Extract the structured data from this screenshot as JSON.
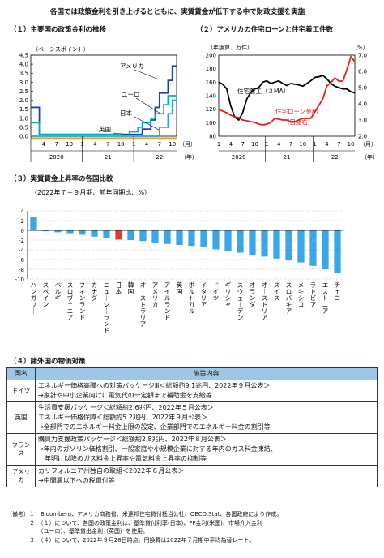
{
  "page_title": "各国では政策金利を引き上げるとともに、実質賃金が低下する中で財政支援を実施",
  "panel1": {
    "title": "（１）主要国の政策金利の推移",
    "chart_data": {
      "type": "line",
      "title": "主要国の政策金利の推移",
      "ylabel": "（ベーシスポイント）",
      "ylim": [
        0,
        4.5
      ],
      "yticks": [
        "4.5",
        "4.0",
        "3.5",
        "3.0",
        "2.5",
        "2.0",
        "1.5",
        "1.0",
        "0.5",
        "0.0"
      ],
      "x_month_ticks": [
        "4",
        "7",
        "10",
        "1",
        "4",
        "7",
        "10",
        "1",
        "4",
        "7",
        "10"
      ],
      "x_month_unit": "（月）",
      "x_years": [
        "2020",
        "21",
        "22"
      ],
      "x_year_unit": "（年）",
      "months": [
        "2020-01",
        "2020-02",
        "2020-03",
        "2020-04",
        "2020-05",
        "2020-06",
        "2020-07",
        "2020-08",
        "2020-09",
        "2020-10",
        "2020-11",
        "2020-12",
        "2021-01",
        "2021-02",
        "2021-03",
        "2021-04",
        "2021-05",
        "2021-06",
        "2021-07",
        "2021-08",
        "2021-09",
        "2021-10",
        "2021-11",
        "2021-12",
        "2022-01",
        "2022-02",
        "2022-03",
        "2022-04",
        "2022-05",
        "2022-06",
        "2022-07",
        "2022-08",
        "2022-09",
        "2022-10"
      ],
      "series": [
        {
          "name": "アメリカ",
          "color": "#1f3fbf",
          "values": [
            1.6,
            1.6,
            0.1,
            0.1,
            0.1,
            0.1,
            0.1,
            0.1,
            0.1,
            0.1,
            0.1,
            0.1,
            0.1,
            0.1,
            0.1,
            0.1,
            0.1,
            0.1,
            0.1,
            0.1,
            0.1,
            0.1,
            0.1,
            0.1,
            0.1,
            0.1,
            0.4,
            0.4,
            0.9,
            1.6,
            2.4,
            2.4,
            3.1,
            3.9
          ]
        },
        {
          "name": "ユーロ",
          "color": "#28a0e6",
          "values": [
            0,
            0,
            0,
            0,
            0,
            0,
            0,
            0,
            0,
            0,
            0,
            0,
            0,
            0,
            0,
            0,
            0,
            0,
            0,
            0,
            0,
            0,
            0,
            0,
            0,
            0,
            0,
            0,
            0,
            0,
            0.5,
            0.5,
            1.25,
            2.0
          ]
        },
        {
          "name": "日本",
          "color": "#f0a020",
          "values": [
            -0.1,
            -0.1,
            -0.1,
            -0.1,
            -0.1,
            -0.1,
            -0.1,
            -0.1,
            -0.1,
            -0.1,
            -0.1,
            -0.1,
            -0.1,
            -0.1,
            -0.1,
            -0.1,
            -0.1,
            -0.1,
            -0.1,
            -0.1,
            -0.1,
            -0.1,
            -0.1,
            -0.1,
            -0.1,
            -0.1,
            -0.1,
            -0.1,
            -0.1,
            -0.1,
            -0.1,
            -0.1,
            -0.1,
            -0.1
          ]
        },
        {
          "name": "英国",
          "color": "#00b0b0",
          "values": [
            0.75,
            0.75,
            0.1,
            0.1,
            0.1,
            0.1,
            0.1,
            0.1,
            0.1,
            0.1,
            0.1,
            0.1,
            0.1,
            0.1,
            0.1,
            0.1,
            0.1,
            0.1,
            0.1,
            0.1,
            0.1,
            0.1,
            0.1,
            0.25,
            0.25,
            0.5,
            0.75,
            0.75,
            1.0,
            1.25,
            1.25,
            1.75,
            2.25,
            2.25
          ]
        }
      ]
    }
  },
  "panel2": {
    "title": "（２）アメリカの住宅ローンと住宅着工件数",
    "chart_data": {
      "type": "line",
      "title": "アメリカの住宅ローンと住宅着工件数",
      "left_axis_label": "（年換算、万件）",
      "right_axis_label": "（%）",
      "left_ylim": [
        80,
        200
      ],
      "right_ylim": [
        2.0,
        7.0
      ],
      "left_ticks": [
        "200",
        "180",
        "160",
        "140",
        "120",
        "100",
        "80"
      ],
      "right_ticks": [
        "7.0",
        "6.0",
        "5.0",
        "4.0",
        "3.0",
        "2.0"
      ],
      "x_month_ticks": [
        "1",
        "4",
        "7",
        "10",
        "1",
        "4",
        "7",
        "10",
        "1",
        "4",
        "7",
        "10"
      ],
      "x_month_unit": "（月）",
      "x_years": [
        "2020",
        "21",
        "22"
      ],
      "x_year_unit": "（年）",
      "months": [
        "2020-01",
        "2020-02",
        "2020-03",
        "2020-04",
        "2020-05",
        "2020-06",
        "2020-07",
        "2020-08",
        "2020-09",
        "2020-10",
        "2020-11",
        "2020-12",
        "2021-01",
        "2021-02",
        "2021-03",
        "2021-04",
        "2021-05",
        "2021-06",
        "2021-07",
        "2021-08",
        "2021-09",
        "2021-10",
        "2021-11",
        "2021-12",
        "2022-01",
        "2022-02",
        "2022-03",
        "2022-04",
        "2022-05",
        "2022-06",
        "2022-07",
        "2022-08",
        "2022-09",
        "2022-10",
        "2022-11"
      ],
      "series": [
        {
          "name": "住宅着工（３MA）",
          "axis": "left",
          "color": "#000000",
          "values": [
            160,
            157,
            150,
            125,
            108,
            104,
            115,
            135,
            145,
            150,
            152,
            160,
            162,
            158,
            160,
            162,
            158,
            155,
            158,
            157,
            156,
            154,
            158,
            162,
            167,
            168,
            170,
            165,
            158,
            154,
            152,
            150,
            150,
            146,
            144
          ]
        },
        {
          "name": "住宅ローン金利（目盛右）",
          "axis": "right",
          "color": "#e02020",
          "values": [
            3.65,
            3.55,
            3.45,
            3.3,
            3.2,
            3.15,
            3.0,
            2.95,
            2.9,
            2.85,
            2.75,
            2.7,
            2.75,
            2.85,
            3.1,
            3.05,
            3.0,
            3.0,
            2.9,
            2.9,
            3.0,
            3.1,
            3.1,
            3.1,
            3.5,
            3.9,
            4.3,
            5.1,
            5.3,
            5.6,
            5.4,
            5.4,
            6.1,
            6.9,
            6.6
          ]
        }
      ],
      "annotations": [
        "住宅着工（３MA）",
        "住宅ローン金利",
        "（目盛右）"
      ]
    }
  },
  "panel3": {
    "title": "（３）実質賃金上昇率の各国比較",
    "subtitle": "（2022年７－９月期、前年同期比、%）",
    "chart_data": {
      "type": "bar",
      "title": "実質賃金上昇率の各国比較",
      "ylim": [
        -10,
        4
      ],
      "yticks": [
        "4",
        "2",
        "0",
        "-2",
        "-4",
        "-6",
        "-8",
        "-10"
      ],
      "categories": [
        "ハンガリー",
        "スペイン",
        "ベルギー",
        "スロヴェニア",
        "フィンランド",
        "カナダ",
        "ニュージーランド",
        "日本",
        "韓国",
        "オーストラリア",
        "アメリカ",
        "アイルランド",
        "英国",
        "ポルトガル",
        "イタリア",
        "ドイツ",
        "ギリシャ",
        "スウェーデン",
        "オランダ",
        "オーストリア",
        "スイス",
        "スロバキア",
        "メキシコ",
        "ラトビア",
        "エストニア",
        "チェコ"
      ],
      "values": [
        2.7,
        -0.2,
        -0.4,
        -0.6,
        -0.9,
        -1.3,
        -1.5,
        -1.9,
        -2.0,
        -2.2,
        -2.6,
        -2.8,
        -3.0,
        -3.2,
        -3.5,
        -3.9,
        -4.2,
        -4.6,
        -5.1,
        -5.4,
        -5.8,
        -6.2,
        -6.6,
        -7.3,
        -8.0,
        -8.7
      ],
      "highlight": "日本",
      "bar_color": "#3ba7e6",
      "highlight_color": "#e23a2a"
    }
  },
  "panel4": {
    "title": "（４）諸外国の物価対策",
    "headers": [
      "国名",
      "施策内容"
    ],
    "rows": [
      {
        "country": "ドイツ",
        "lines": [
          "エネルギー価格高騰への対策パッケージⅢ＜総額約9.1兆円、2022年９月公表＞",
          "→家計や中小企業向けに電気代の一定額まで補助金を支給等"
        ]
      },
      {
        "country": "英国",
        "lines": [
          "生活費支援パッケージ＜総額約2.6兆円、2022年５月公表＞",
          "エネルギー価格保障＜総額約5.2兆円、2022年９月公表＞",
          "→全部門でのエネルギー料金上限の設定、企業部門でのエネルギー料金の割引等"
        ]
      },
      {
        "country": "フランス",
        "lines": [
          "購買力支援政策パッケージ＜総額約2.8兆円、2022年８月公表＞",
          "→年内のガソリン価格割引、一般家庭や小規模企業に対する年内のガス料金凍結、",
          "　年明け以降のガス料金上昇率や電気料金上昇率の抑制等"
        ]
      },
      {
        "country": "アメリカ",
        "lines": [
          "カリフォルニア州独自の取組＜2022年６月公表＞",
          "→中間層以下への税還付等"
        ]
      }
    ]
  },
  "notes": [
    "（備考）１．Bloomberg、アメリカ商務省、米連邦住宅貸付抵当公社、OECD.Stat、各国政府により作成。",
    "　　　　２．（１）について、各国の政策金利は、基準貸付利率(日本)、FF金利(米国)、市場介入金利",
    "　　　　　　（ユーロ）、基準貸出金利（英国）を使用。",
    "　　　　３．（４）について、2022年９月28日時点。円換算は2022年７月期中平均為替レート。"
  ]
}
